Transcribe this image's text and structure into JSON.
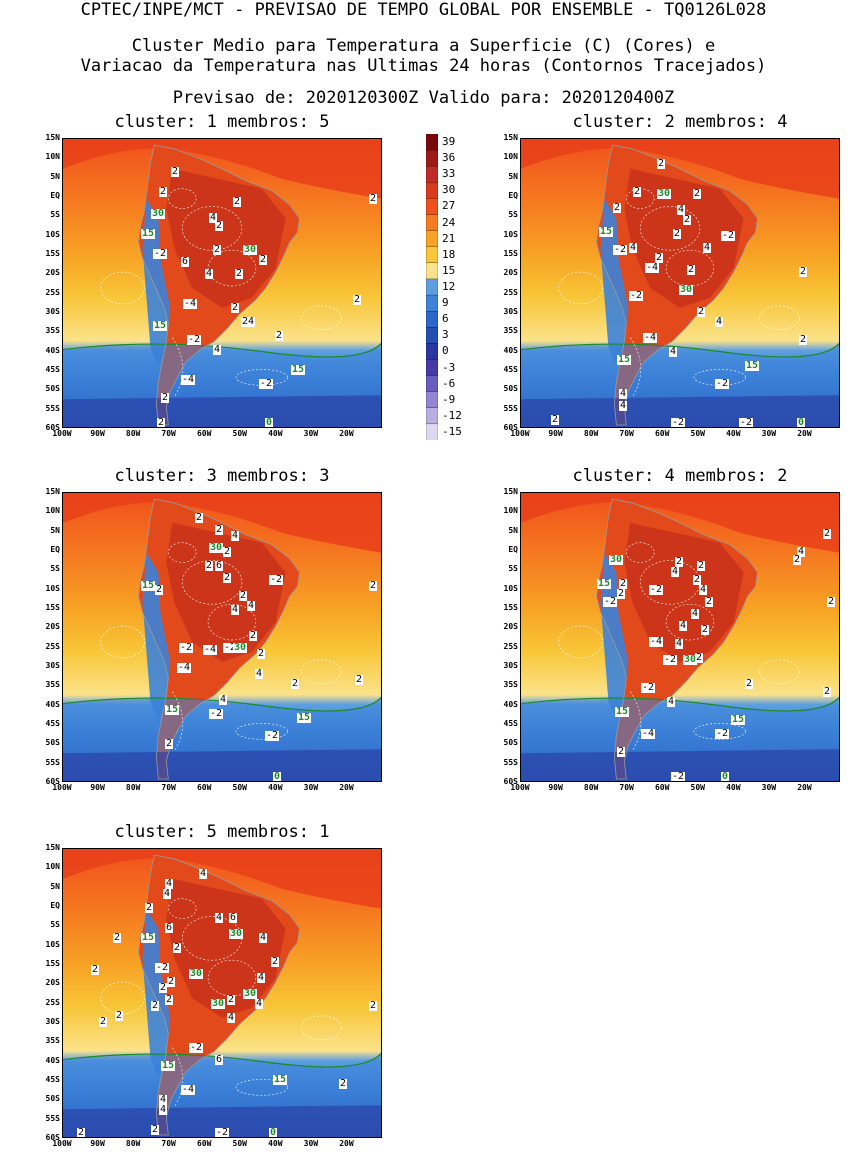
{
  "header": {
    "line1": "CPTEC/INPE/MCT - PREVISAO DE TEMPO GLOBAL POR ENSEMBLE - TQ0126L028",
    "line2": "Cluster Medio para Temperatura a Superficie (C) (Cores) e",
    "line3": "Variacao da Temperatura nas Ultimas 24 horas (Contornos Tracejados)",
    "line4": "Previsao de: 2020120300Z    Valido para: 2020120400Z"
  },
  "lat_ticks": [
    "15N",
    "10N",
    "5N",
    "EQ",
    "5S",
    "10S",
    "15S",
    "20S",
    "25S",
    "30S",
    "35S",
    "40S",
    "45S",
    "50S",
    "55S",
    "60S"
  ],
  "lon_ticks": [
    "100W",
    "90W",
    "80W",
    "70W",
    "60W",
    "50W",
    "40W",
    "30W",
    "20W"
  ],
  "colorbar": {
    "labels": [
      "39",
      "36",
      "33",
      "30",
      "27",
      "24",
      "21",
      "18",
      "15",
      "12",
      "9",
      "6",
      "3",
      "0",
      "-3",
      "-6",
      "-9",
      "-12",
      "-15"
    ],
    "colors": [
      "#7a0a0a",
      "#a01818",
      "#c02a2a",
      "#d83a1c",
      "#f0501c",
      "#f57a20",
      "#f7a224",
      "#f8c638",
      "#fbe28a",
      "#5e9ee0",
      "#3c82d8",
      "#2c66c8",
      "#2450b0",
      "#2838a0",
      "#4a3aa8",
      "#6a5cc0",
      "#9484d4",
      "#b8aee2",
      "#ddd8f0"
    ]
  },
  "panels": [
    {
      "title": "cluster: 1   membros: 5",
      "labels": [
        {
          "t": "2",
          "c": "k",
          "x": 108,
          "y": 28
        },
        {
          "t": "2",
          "c": "k",
          "x": 96,
          "y": 48
        },
        {
          "t": "2",
          "c": "k",
          "x": 170,
          "y": 58
        },
        {
          "t": "2",
          "c": "k",
          "x": 314,
          "y": 55
        },
        {
          "t": "30",
          "c": "g",
          "x": 88,
          "y": 70
        },
        {
          "t": "4",
          "c": "k",
          "x": 146,
          "y": 74
        },
        {
          "t": "2",
          "c": "k",
          "x": 152,
          "y": 82
        },
        {
          "t": "15",
          "c": "g",
          "x": 78,
          "y": 90
        },
        {
          "t": "-2",
          "c": "k",
          "x": 90,
          "y": 110
        },
        {
          "t": "6",
          "c": "k",
          "x": 118,
          "y": 118
        },
        {
          "t": "2",
          "c": "k",
          "x": 150,
          "y": 106
        },
        {
          "t": "30",
          "c": "g",
          "x": 180,
          "y": 106
        },
        {
          "t": "2",
          "c": "k",
          "x": 196,
          "y": 116
        },
        {
          "t": "4",
          "c": "k",
          "x": 142,
          "y": 130
        },
        {
          "t": "2",
          "c": "k",
          "x": 172,
          "y": 130
        },
        {
          "t": "-4",
          "c": "k",
          "x": 120,
          "y": 160
        },
        {
          "t": "2",
          "c": "k",
          "x": 168,
          "y": 164
        },
        {
          "t": "2",
          "c": "k",
          "x": 290,
          "y": 156
        },
        {
          "t": "15",
          "c": "g",
          "x": 90,
          "y": 182
        },
        {
          "t": "24",
          "c": "k",
          "x": 178,
          "y": 178
        },
        {
          "t": "-2",
          "c": "k",
          "x": 124,
          "y": 196
        },
        {
          "t": "2",
          "c": "k",
          "x": 212,
          "y": 192
        },
        {
          "t": "4",
          "c": "k",
          "x": 150,
          "y": 206
        },
        {
          "t": "15",
          "c": "g",
          "x": 228,
          "y": 226
        },
        {
          "t": "-4",
          "c": "k",
          "x": 118,
          "y": 236
        },
        {
          "t": "-2",
          "c": "k",
          "x": 196,
          "y": 240
        },
        {
          "t": "2",
          "c": "k",
          "x": 98,
          "y": 254
        },
        {
          "t": "0",
          "c": "g",
          "x": 202,
          "y": 290
        },
        {
          "t": "2",
          "c": "k",
          "x": 94,
          "y": 294
        }
      ]
    },
    {
      "title": "cluster: 2   membros: 4",
      "labels": [
        {
          "t": "2",
          "c": "k",
          "x": 136,
          "y": 20
        },
        {
          "t": "2",
          "c": "k",
          "x": 112,
          "y": 48
        },
        {
          "t": "30",
          "c": "g",
          "x": 136,
          "y": 50
        },
        {
          "t": "2",
          "c": "k",
          "x": 172,
          "y": 50
        },
        {
          "t": "2",
          "c": "k",
          "x": 92,
          "y": 64
        },
        {
          "t": "4",
          "c": "k",
          "x": 156,
          "y": 66
        },
        {
          "t": "2",
          "c": "k",
          "x": 162,
          "y": 76
        },
        {
          "t": "15",
          "c": "g",
          "x": 78,
          "y": 88
        },
        {
          "t": "2",
          "c": "k",
          "x": 152,
          "y": 90
        },
        {
          "t": "-2",
          "c": "k",
          "x": 200,
          "y": 92
        },
        {
          "t": "-2",
          "c": "k",
          "x": 92,
          "y": 106
        },
        {
          "t": "4",
          "c": "k",
          "x": 108,
          "y": 104
        },
        {
          "t": "4",
          "c": "k",
          "x": 182,
          "y": 104
        },
        {
          "t": "2",
          "c": "k",
          "x": 134,
          "y": 114
        },
        {
          "t": "-4",
          "c": "k",
          "x": 124,
          "y": 124
        },
        {
          "t": "2",
          "c": "k",
          "x": 166,
          "y": 126
        },
        {
          "t": "2",
          "c": "k",
          "x": 278,
          "y": 128
        },
        {
          "t": "30",
          "c": "g",
          "x": 158,
          "y": 146
        },
        {
          "t": "-2",
          "c": "k",
          "x": 108,
          "y": 152
        },
        {
          "t": "2",
          "c": "k",
          "x": 176,
          "y": 168
        },
        {
          "t": "4",
          "c": "k",
          "x": 194,
          "y": 178
        },
        {
          "t": "-4",
          "c": "k",
          "x": 122,
          "y": 194
        },
        {
          "t": "2",
          "c": "k",
          "x": 278,
          "y": 196
        },
        {
          "t": "4",
          "c": "k",
          "x": 148,
          "y": 208
        },
        {
          "t": "15",
          "c": "g",
          "x": 96,
          "y": 216
        },
        {
          "t": "15",
          "c": "g",
          "x": 224,
          "y": 222
        },
        {
          "t": "-2",
          "c": "k",
          "x": 194,
          "y": 240
        },
        {
          "t": "4",
          "c": "k",
          "x": 98,
          "y": 250
        },
        {
          "t": "4",
          "c": "k",
          "x": 98,
          "y": 262
        },
        {
          "t": "2",
          "c": "k",
          "x": 30,
          "y": 276
        },
        {
          "t": "-2",
          "c": "k",
          "x": 150,
          "y": 292
        },
        {
          "t": "-2",
          "c": "k",
          "x": 218,
          "y": 290
        },
        {
          "t": "0",
          "c": "g",
          "x": 276,
          "y": 286
        }
      ]
    },
    {
      "title": "cluster: 3   membros: 3",
      "labels": [
        {
          "t": "2",
          "c": "k",
          "x": 132,
          "y": 20
        },
        {
          "t": "2",
          "c": "k",
          "x": 152,
          "y": 32
        },
        {
          "t": "4",
          "c": "k",
          "x": 168,
          "y": 38
        },
        {
          "t": "30",
          "c": "g",
          "x": 146,
          "y": 50
        },
        {
          "t": "2",
          "c": "k",
          "x": 160,
          "y": 54
        },
        {
          "t": "2",
          "c": "k",
          "x": 142,
          "y": 68
        },
        {
          "t": "6",
          "c": "k",
          "x": 152,
          "y": 68
        },
        {
          "t": "2",
          "c": "k",
          "x": 160,
          "y": 80
        },
        {
          "t": "-2",
          "c": "k",
          "x": 206,
          "y": 82
        },
        {
          "t": "15",
          "c": "g",
          "x": 78,
          "y": 88
        },
        {
          "t": "2",
          "c": "k",
          "x": 92,
          "y": 92
        },
        {
          "t": "2",
          "c": "k",
          "x": 318,
          "y": 88
        },
        {
          "t": "2",
          "c": "k",
          "x": 176,
          "y": 98
        },
        {
          "t": "4",
          "c": "k",
          "x": 168,
          "y": 112
        },
        {
          "t": "4",
          "c": "k",
          "x": 184,
          "y": 108
        },
        {
          "t": "2",
          "c": "k",
          "x": 186,
          "y": 138
        },
        {
          "t": "-2",
          "c": "k",
          "x": 116,
          "y": 150
        },
        {
          "t": "-4",
          "c": "k",
          "x": 140,
          "y": 152
        },
        {
          "t": "-2",
          "c": "k",
          "x": 160,
          "y": 150
        },
        {
          "t": "30",
          "c": "g",
          "x": 170,
          "y": 150
        },
        {
          "t": "2",
          "c": "k",
          "x": 194,
          "y": 156
        },
        {
          "t": "-4",
          "c": "k",
          "x": 114,
          "y": 170
        },
        {
          "t": "4",
          "c": "k",
          "x": 192,
          "y": 176
        },
        {
          "t": "2",
          "c": "k",
          "x": 228,
          "y": 186
        },
        {
          "t": "2",
          "c": "k",
          "x": 292,
          "y": 182
        },
        {
          "t": "4",
          "c": "k",
          "x": 156,
          "y": 202
        },
        {
          "t": "15",
          "c": "g",
          "x": 102,
          "y": 212
        },
        {
          "t": "-2",
          "c": "k",
          "x": 146,
          "y": 216
        },
        {
          "t": "15",
          "c": "g",
          "x": 234,
          "y": 220
        },
        {
          "t": "-2",
          "c": "k",
          "x": 202,
          "y": 238
        },
        {
          "t": "2",
          "c": "k",
          "x": 102,
          "y": 246
        },
        {
          "t": "0",
          "c": "g",
          "x": 210,
          "y": 292
        }
      ]
    },
    {
      "title": "cluster: 4   membros: 2",
      "labels": [
        {
          "t": "2",
          "c": "k",
          "x": 302,
          "y": 36
        },
        {
          "t": "4",
          "c": "k",
          "x": 276,
          "y": 54
        },
        {
          "t": "2",
          "c": "k",
          "x": 272,
          "y": 62
        },
        {
          "t": "30",
          "c": "g",
          "x": 88,
          "y": 62
        },
        {
          "t": "2",
          "c": "k",
          "x": 154,
          "y": 64
        },
        {
          "t": "2",
          "c": "k",
          "x": 176,
          "y": 68
        },
        {
          "t": "4",
          "c": "k",
          "x": 150,
          "y": 74
        },
        {
          "t": "2",
          "c": "k",
          "x": 172,
          "y": 82
        },
        {
          "t": "15",
          "c": "g",
          "x": 76,
          "y": 86
        },
        {
          "t": "2",
          "c": "k",
          "x": 98,
          "y": 86
        },
        {
          "t": "-2",
          "c": "k",
          "x": 128,
          "y": 92
        },
        {
          "t": "4",
          "c": "k",
          "x": 178,
          "y": 92
        },
        {
          "t": "2",
          "c": "k",
          "x": 96,
          "y": 96
        },
        {
          "t": "-2",
          "c": "k",
          "x": 82,
          "y": 104
        },
        {
          "t": "2",
          "c": "k",
          "x": 184,
          "y": 104
        },
        {
          "t": "2",
          "c": "k",
          "x": 306,
          "y": 104
        },
        {
          "t": "4",
          "c": "k",
          "x": 170,
          "y": 116
        },
        {
          "t": "4",
          "c": "k",
          "x": 158,
          "y": 128
        },
        {
          "t": "2",
          "c": "k",
          "x": 180,
          "y": 132
        },
        {
          "t": "-4",
          "c": "k",
          "x": 128,
          "y": 144
        },
        {
          "t": "4",
          "c": "k",
          "x": 154,
          "y": 146
        },
        {
          "t": "-2",
          "c": "k",
          "x": 142,
          "y": 162
        },
        {
          "t": "30",
          "c": "g",
          "x": 162,
          "y": 162
        },
        {
          "t": "2",
          "c": "k",
          "x": 174,
          "y": 160
        },
        {
          "t": "2",
          "c": "k",
          "x": 224,
          "y": 186
        },
        {
          "t": "-2",
          "c": "k",
          "x": 120,
          "y": 190
        },
        {
          "t": "4",
          "c": "k",
          "x": 146,
          "y": 204
        },
        {
          "t": "2",
          "c": "k",
          "x": 302,
          "y": 194
        },
        {
          "t": "15",
          "c": "g",
          "x": 94,
          "y": 214
        },
        {
          "t": "15",
          "c": "g",
          "x": 210,
          "y": 222
        },
        {
          "t": "-4",
          "c": "k",
          "x": 120,
          "y": 236
        },
        {
          "t": "-2",
          "c": "k",
          "x": 194,
          "y": 236
        },
        {
          "t": "2",
          "c": "k",
          "x": 96,
          "y": 254
        },
        {
          "t": "-2",
          "c": "k",
          "x": 150,
          "y": 286
        },
        {
          "t": "0",
          "c": "g",
          "x": 200,
          "y": 294
        }
      ]
    },
    {
      "title": "cluster: 5   membros: 1",
      "labels": [
        {
          "t": "4",
          "c": "k",
          "x": 136,
          "y": 20
        },
        {
          "t": "4",
          "c": "k",
          "x": 102,
          "y": 30
        },
        {
          "t": "4",
          "c": "k",
          "x": 100,
          "y": 40
        },
        {
          "t": "2",
          "c": "k",
          "x": 82,
          "y": 54
        },
        {
          "t": "4",
          "c": "k",
          "x": 152,
          "y": 64
        },
        {
          "t": "6",
          "c": "k",
          "x": 166,
          "y": 64
        },
        {
          "t": "6",
          "c": "k",
          "x": 102,
          "y": 74
        },
        {
          "t": "30",
          "c": "g",
          "x": 166,
          "y": 80
        },
        {
          "t": "4",
          "c": "k",
          "x": 196,
          "y": 84
        },
        {
          "t": "15",
          "c": "g",
          "x": 78,
          "y": 84
        },
        {
          "t": "2",
          "c": "k",
          "x": 50,
          "y": 84
        },
        {
          "t": "2",
          "c": "k",
          "x": 110,
          "y": 94
        },
        {
          "t": "-2",
          "c": "k",
          "x": 92,
          "y": 114
        },
        {
          "t": "30",
          "c": "g",
          "x": 126,
          "y": 120
        },
        {
          "t": "2",
          "c": "k",
          "x": 28,
          "y": 116
        },
        {
          "t": "2",
          "c": "k",
          "x": 208,
          "y": 108
        },
        {
          "t": "4",
          "c": "k",
          "x": 194,
          "y": 124
        },
        {
          "t": "2",
          "c": "k",
          "x": 96,
          "y": 134
        },
        {
          "t": "2",
          "c": "k",
          "x": 104,
          "y": 128
        },
        {
          "t": "30",
          "c": "g",
          "x": 180,
          "y": 140
        },
        {
          "t": "2",
          "c": "k",
          "x": 164,
          "y": 146
        },
        {
          "t": "30",
          "c": "g",
          "x": 148,
          "y": 150
        },
        {
          "t": "4",
          "c": "k",
          "x": 192,
          "y": 150
        },
        {
          "t": "2",
          "c": "k",
          "x": 88,
          "y": 152
        },
        {
          "t": "2",
          "c": "k",
          "x": 102,
          "y": 146
        },
        {
          "t": "2",
          "c": "k",
          "x": 310,
          "y": 152
        },
        {
          "t": "2",
          "c": "k",
          "x": 52,
          "y": 162
        },
        {
          "t": "2",
          "c": "k",
          "x": 36,
          "y": 168
        },
        {
          "t": "4",
          "c": "k",
          "x": 164,
          "y": 164
        },
        {
          "t": "-2",
          "c": "k",
          "x": 126,
          "y": 194
        },
        {
          "t": "6",
          "c": "k",
          "x": 152,
          "y": 206
        },
        {
          "t": "15",
          "c": "g",
          "x": 98,
          "y": 212
        },
        {
          "t": "15",
          "c": "g",
          "x": 210,
          "y": 226
        },
        {
          "t": "2",
          "c": "k",
          "x": 276,
          "y": 230
        },
        {
          "t": "-4",
          "c": "k",
          "x": 118,
          "y": 236
        },
        {
          "t": "4",
          "c": "k",
          "x": 96,
          "y": 246
        },
        {
          "t": "4",
          "c": "k",
          "x": 96,
          "y": 256
        },
        {
          "t": "2",
          "c": "k",
          "x": 88,
          "y": 276
        },
        {
          "t": "-2",
          "c": "k",
          "x": 152,
          "y": 286
        },
        {
          "t": "0",
          "c": "g",
          "x": 206,
          "y": 294
        },
        {
          "t": "2",
          "c": "k",
          "x": 14,
          "y": 292
        }
      ]
    }
  ]
}
